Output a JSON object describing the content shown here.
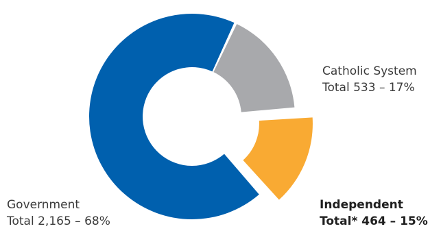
{
  "chart_data": {
    "type": "pie",
    "style": "donut",
    "slices": [
      {
        "name": "Government",
        "total_label": "Total 2,165 – 68%",
        "value": 2165,
        "percent": 68,
        "color": "#0060AE",
        "exploded": false,
        "bold": false
      },
      {
        "name": "Catholic System",
        "total_label": "Total 533 – 17%",
        "value": 533,
        "percent": 17,
        "color": "#A8A9AC",
        "exploded": false,
        "bold": false
      },
      {
        "name": "Independent",
        "total_label": "Total* 464 – 15%",
        "value": 464,
        "percent": 15,
        "color": "#F9AA33",
        "exploded": true,
        "bold": true
      }
    ]
  }
}
